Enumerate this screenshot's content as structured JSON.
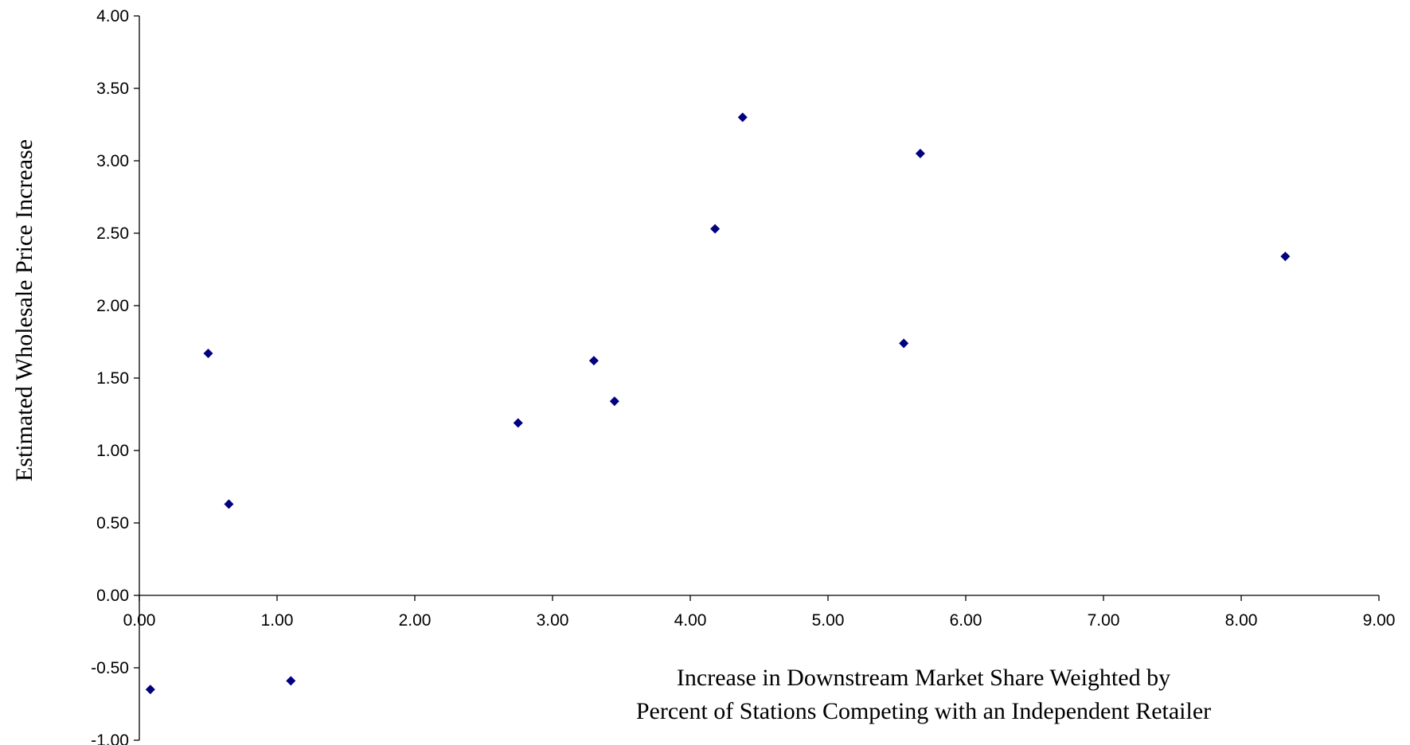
{
  "chart_data": {
    "type": "scatter",
    "title": "",
    "xlabel_lines": [
      "Increase in Downstream Market Share Weighted by",
      "Percent of Stations Competing with an Independent Retailer"
    ],
    "ylabel": "Estimated Wholesale  Price Increase",
    "xlim": [
      0,
      9
    ],
    "ylim": [
      -1,
      4
    ],
    "x_ticks": [
      "0.00",
      "1.00",
      "2.00",
      "3.00",
      "4.00",
      "5.00",
      "6.00",
      "7.00",
      "8.00",
      "9.00"
    ],
    "y_ticks": [
      "-1.00",
      "-0.50",
      "0.00",
      "0.50",
      "1.00",
      "1.50",
      "2.00",
      "2.50",
      "3.00",
      "3.50",
      "4.00"
    ],
    "grid": false,
    "legend": "none",
    "marker": "diamond",
    "marker_color": "#000080",
    "points": [
      {
        "x": 0.08,
        "y": -0.65
      },
      {
        "x": 0.5,
        "y": 1.67
      },
      {
        "x": 0.65,
        "y": 0.63
      },
      {
        "x": 1.1,
        "y": -0.59
      },
      {
        "x": 2.75,
        "y": 1.19
      },
      {
        "x": 3.3,
        "y": 1.62
      },
      {
        "x": 3.45,
        "y": 1.34
      },
      {
        "x": 4.18,
        "y": 2.53
      },
      {
        "x": 4.38,
        "y": 3.3
      },
      {
        "x": 5.55,
        "y": 1.74
      },
      {
        "x": 5.67,
        "y": 3.05
      },
      {
        "x": 8.32,
        "y": 2.34
      }
    ]
  }
}
